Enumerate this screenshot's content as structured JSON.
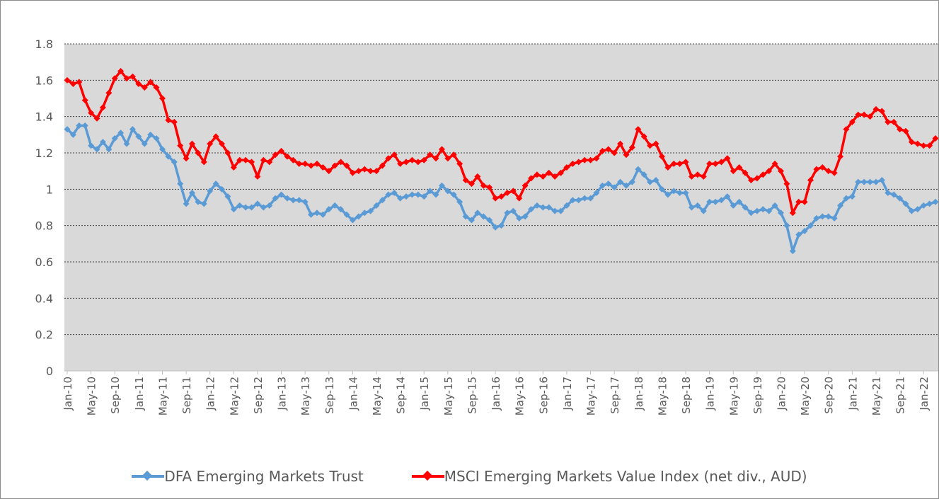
{
  "chart_data": {
    "type": "line",
    "title": "",
    "xlabel": "",
    "ylabel": "",
    "ylim": [
      0,
      1.8
    ],
    "y_ticks": [
      "0",
      "0.2",
      "0.4",
      "0.6",
      "0.8",
      "1",
      "1.2",
      "1.4",
      "1.6",
      "1.8"
    ],
    "x_start": "2010-01",
    "x_end": "2022-03",
    "x_tick_labels": [
      "Jan-10",
      "May-10",
      "Sep-10",
      "Jan-11",
      "May-11",
      "Sep-11",
      "Jan-12",
      "May-12",
      "Sep-12",
      "Jan-13",
      "May-13",
      "Sep-13",
      "Jan-14",
      "May-14",
      "Sep-14",
      "Jan-15",
      "May-15",
      "Sep-15",
      "Jan-16",
      "May-16",
      "Sep-16",
      "Jan-17",
      "May-17",
      "Sep-17",
      "Jan-18",
      "May-18",
      "Sep-18",
      "Jan-19",
      "May-19",
      "Sep-19",
      "Jan-20",
      "May-20",
      "Sep-20",
      "Jan-21",
      "May-21",
      "Sep-21",
      "Jan-22"
    ],
    "grid": true,
    "grid_style": "dotted",
    "plot_background": "#d9d9d9",
    "legend_position": "bottom",
    "series": [
      {
        "name": "DFA Emerging Markets Trust",
        "color": "#5b9bd5",
        "marker": "diamond",
        "values": [
          1.33,
          1.3,
          1.35,
          1.35,
          1.24,
          1.22,
          1.26,
          1.22,
          1.28,
          1.31,
          1.25,
          1.33,
          1.29,
          1.25,
          1.3,
          1.28,
          1.22,
          1.18,
          1.15,
          1.03,
          0.92,
          0.98,
          0.93,
          0.92,
          0.99,
          1.03,
          1.0,
          0.96,
          0.89,
          0.91,
          0.9,
          0.9,
          0.92,
          0.9,
          0.91,
          0.95,
          0.97,
          0.95,
          0.94,
          0.94,
          0.93,
          0.86,
          0.87,
          0.86,
          0.89,
          0.91,
          0.89,
          0.86,
          0.83,
          0.85,
          0.87,
          0.88,
          0.91,
          0.94,
          0.97,
          0.98,
          0.95,
          0.96,
          0.97,
          0.97,
          0.96,
          0.99,
          0.97,
          1.02,
          0.99,
          0.97,
          0.93,
          0.85,
          0.83,
          0.87,
          0.85,
          0.83,
          0.79,
          0.8,
          0.87,
          0.88,
          0.84,
          0.85,
          0.89,
          0.91,
          0.9,
          0.9,
          0.88,
          0.88,
          0.91,
          0.94,
          0.94,
          0.95,
          0.95,
          0.98,
          1.02,
          1.03,
          1.01,
          1.04,
          1.02,
          1.04,
          1.11,
          1.08,
          1.04,
          1.05,
          1.0,
          0.97,
          0.99,
          0.98,
          0.98,
          0.9,
          0.91,
          0.88,
          0.93,
          0.93,
          0.94,
          0.96,
          0.91,
          0.93,
          0.9,
          0.87,
          0.88,
          0.89,
          0.88,
          0.91,
          0.87,
          0.8,
          0.66,
          0.75,
          0.77,
          0.8,
          0.84,
          0.85,
          0.85,
          0.84,
          0.91,
          0.95,
          0.96,
          1.04,
          1.04,
          1.04,
          1.04,
          1.05,
          0.98,
          0.97,
          0.95,
          0.92,
          0.88,
          0.89,
          0.91,
          0.92,
          0.93
        ]
      },
      {
        "name": "MSCI Emerging Markets Value Index (net div., AUD)",
        "color": "#ff0000",
        "marker": "diamond",
        "values": [
          1.6,
          1.58,
          1.59,
          1.49,
          1.42,
          1.39,
          1.45,
          1.53,
          1.61,
          1.65,
          1.61,
          1.62,
          1.58,
          1.56,
          1.59,
          1.56,
          1.5,
          1.38,
          1.37,
          1.24,
          1.17,
          1.25,
          1.2,
          1.15,
          1.25,
          1.29,
          1.25,
          1.2,
          1.12,
          1.16,
          1.16,
          1.15,
          1.07,
          1.16,
          1.15,
          1.19,
          1.21,
          1.18,
          1.16,
          1.14,
          1.14,
          1.13,
          1.14,
          1.12,
          1.1,
          1.13,
          1.15,
          1.13,
          1.09,
          1.1,
          1.11,
          1.1,
          1.1,
          1.13,
          1.17,
          1.19,
          1.14,
          1.15,
          1.16,
          1.15,
          1.16,
          1.19,
          1.17,
          1.22,
          1.17,
          1.19,
          1.14,
          1.05,
          1.03,
          1.07,
          1.02,
          1.01,
          0.95,
          0.96,
          0.98,
          0.99,
          0.95,
          1.02,
          1.06,
          1.08,
          1.07,
          1.09,
          1.07,
          1.09,
          1.12,
          1.14,
          1.15,
          1.16,
          1.16,
          1.17,
          1.21,
          1.22,
          1.2,
          1.25,
          1.19,
          1.23,
          1.33,
          1.29,
          1.24,
          1.25,
          1.18,
          1.12,
          1.14,
          1.14,
          1.15,
          1.07,
          1.08,
          1.07,
          1.14,
          1.14,
          1.15,
          1.17,
          1.1,
          1.12,
          1.09,
          1.05,
          1.06,
          1.08,
          1.1,
          1.14,
          1.1,
          1.03,
          0.87,
          0.93,
          0.93,
          1.05,
          1.11,
          1.12,
          1.1,
          1.09,
          1.18,
          1.33,
          1.37,
          1.41,
          1.41,
          1.4,
          1.44,
          1.43,
          1.37,
          1.37,
          1.33,
          1.32,
          1.26,
          1.25,
          1.24,
          1.24,
          1.28
        ]
      }
    ]
  }
}
